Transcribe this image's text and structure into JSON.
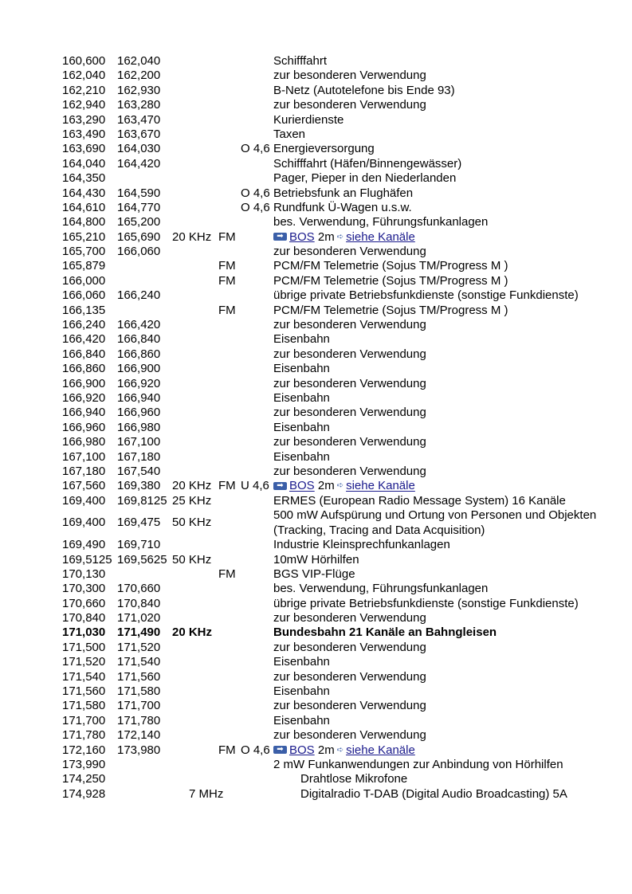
{
  "link_labels": {
    "bos": "BOS",
    "band": "2m",
    "channels": "siehe Kanäle"
  },
  "colors": {
    "link": "#1a1a8c",
    "icon": "#3b5fa8"
  },
  "rows": [
    {
      "f1": "160,600",
      "f2": "162,040",
      "desc": "Schifffahrt"
    },
    {
      "f1": "162,040",
      "f2": "162,200",
      "desc": "zur besonderen Verwendung"
    },
    {
      "f1": "162,210",
      "f2": "162,930",
      "desc": "B-Netz (Autotelefone bis Ende 93)"
    },
    {
      "f1": "162,940",
      "f2": "163,280",
      "desc": "zur besonderen Verwendung"
    },
    {
      "f1": "163,290",
      "f2": "163,470",
      "desc": "Kurierdienste"
    },
    {
      "f1": "163,490",
      "f2": "163,670",
      "desc": "Taxen"
    },
    {
      "f1": "163,690",
      "f2": "164,030",
      "pol": "O 4,6",
      "desc": "Energieversorgung"
    },
    {
      "f1": "164,040",
      "f2": "164,420",
      "desc": "Schifffahrt (Häfen/Binnengewässer)"
    },
    {
      "f1": "164,350",
      "desc": "Pager, Pieper in den Niederlanden"
    },
    {
      "f1": "164,430",
      "f2": "164,590",
      "pol": "O 4,6",
      "desc": "Betriebsfunk an Flughäfen"
    },
    {
      "f1": "164,610",
      "f2": "164,770",
      "pol": "O 4,6",
      "desc": "Rundfunk Ü-Wagen u.s.w."
    },
    {
      "f1": "164,800",
      "f2": "165,200",
      "desc": "bes. Verwendung, Führungsfunkanlagen"
    },
    {
      "f1": "165,210",
      "f2": "165,690",
      "bw": "20 KHz",
      "mod": "FM",
      "bos": true
    },
    {
      "f1": "165,700",
      "f2": "166,060",
      "desc": "zur besonderen Verwendung"
    },
    {
      "f1": "165,879",
      "mod": "FM",
      "desc": "PCM/FM Telemetrie (Sojus TM/Progress M )"
    },
    {
      "f1": "166,000",
      "mod": "FM",
      "desc": "PCM/FM Telemetrie (Sojus TM/Progress M )"
    },
    {
      "f1": "166,060",
      "f2": "166,240",
      "desc": "übrige private Betriebsfunkdienste (sonstige Funkdienste)"
    },
    {
      "f1": "166,135",
      "mod": "FM",
      "desc": "PCM/FM Telemetrie (Sojus TM/Progress M )"
    },
    {
      "f1": "166,240",
      "f2": "166,420",
      "desc": "zur besonderen Verwendung"
    },
    {
      "f1": "166,420",
      "f2": "166,840",
      "desc": "Eisenbahn"
    },
    {
      "f1": "166,840",
      "f2": "166,860",
      "desc": "zur besonderen Verwendung"
    },
    {
      "f1": "166,860",
      "f2": "166,900",
      "desc": "Eisenbahn"
    },
    {
      "f1": "166,900",
      "f2": "166,920",
      "desc": "zur besonderen Verwendung"
    },
    {
      "f1": "166,920",
      "f2": "166,940",
      "desc": "Eisenbahn"
    },
    {
      "f1": "166,940",
      "f2": "166,960",
      "desc": "zur besonderen Verwendung"
    },
    {
      "f1": "166,960",
      "f2": "166,980",
      "desc": "Eisenbahn"
    },
    {
      "f1": "166,980",
      "f2": "167,100",
      "desc": "zur besonderen Verwendung"
    },
    {
      "f1": "167,100",
      "f2": "167,180",
      "desc": "Eisenbahn"
    },
    {
      "f1": "167,180",
      "f2": "167,540",
      "desc": "zur besonderen Verwendung"
    },
    {
      "f1": "167,560",
      "f2": "169,380",
      "bw": "20 KHz",
      "mod": "FM",
      "pol": "U 4,6",
      "bos": true
    },
    {
      "f1": "169,400",
      "f2": "169,8125",
      "bw": "25 KHz",
      "desc": "ERMES (European Radio Message System) 16 Kanäle"
    },
    {
      "f1": "169,400",
      "f2": "169,475",
      "bw": "50 KHz",
      "desc": "500 mW Aufspürung und Ortung von Personen und Objekten (Tracking, Tracing and Data Acquisition)",
      "double": true
    },
    {
      "f1": "169,490",
      "f2": "169,710",
      "desc": "Industrie Kleinsprechfunkanlagen"
    },
    {
      "f1": "169,5125",
      "f2": "169,5625",
      "bw": "50 KHz",
      "desc": "10mW Hörhilfen"
    },
    {
      "f1": "170,130",
      "mod": "FM",
      "desc": "BGS VIP-Flüge"
    },
    {
      "f1": "170,300",
      "f2": "170,660",
      "desc": "bes. Verwendung, Führungsfunkanlagen"
    },
    {
      "f1": "170,660",
      "f2": "170,840",
      "desc": "übrige private Betriebsfunkdienste (sonstige Funkdienste)"
    },
    {
      "f1": "170,840",
      "f2": "171,020",
      "desc": "zur besonderen Verwendung"
    },
    {
      "f1": "171,030",
      "f2": "171,490",
      "bw": "20 KHz",
      "desc": "Bundesbahn 21 Kanäle an Bahngleisen",
      "bold": true
    },
    {
      "f1": "171,500",
      "f2": "171,520",
      "desc": "zur besonderen Verwendung"
    },
    {
      "f1": "171,520",
      "f2": "171,540",
      "desc": "Eisenbahn"
    },
    {
      "f1": "171,540",
      "f2": "171,560",
      "desc": "zur besonderen Verwendung"
    },
    {
      "f1": "171,560",
      "f2": "171,580",
      "desc": "Eisenbahn"
    },
    {
      "f1": "171,580",
      "f2": "171,700",
      "desc": "zur besonderen Verwendung"
    },
    {
      "f1": "171,700",
      "f2": "171,780",
      "desc": "Eisenbahn"
    },
    {
      "f1": "171,780",
      "f2": "172,140",
      "desc": "zur besonderen Verwendung"
    },
    {
      "f1": "172,160",
      "f2": "173,980",
      "mod": "FM",
      "pol": "O 4,6",
      "bos": true
    },
    {
      "f1": "173,990",
      "desc": "2 mW Funkanwendungen zur Anbindung von Hörhilfen"
    },
    {
      "f1": "174,250",
      "desc": "Drahtlose Mikrofone",
      "indent": true
    },
    {
      "f1": "174,928",
      "bw": "7 MHz",
      "desc": "Digitalradio T-DAB (Digital Audio Broadcasting) 5A",
      "indent": true,
      "wide": true
    }
  ]
}
